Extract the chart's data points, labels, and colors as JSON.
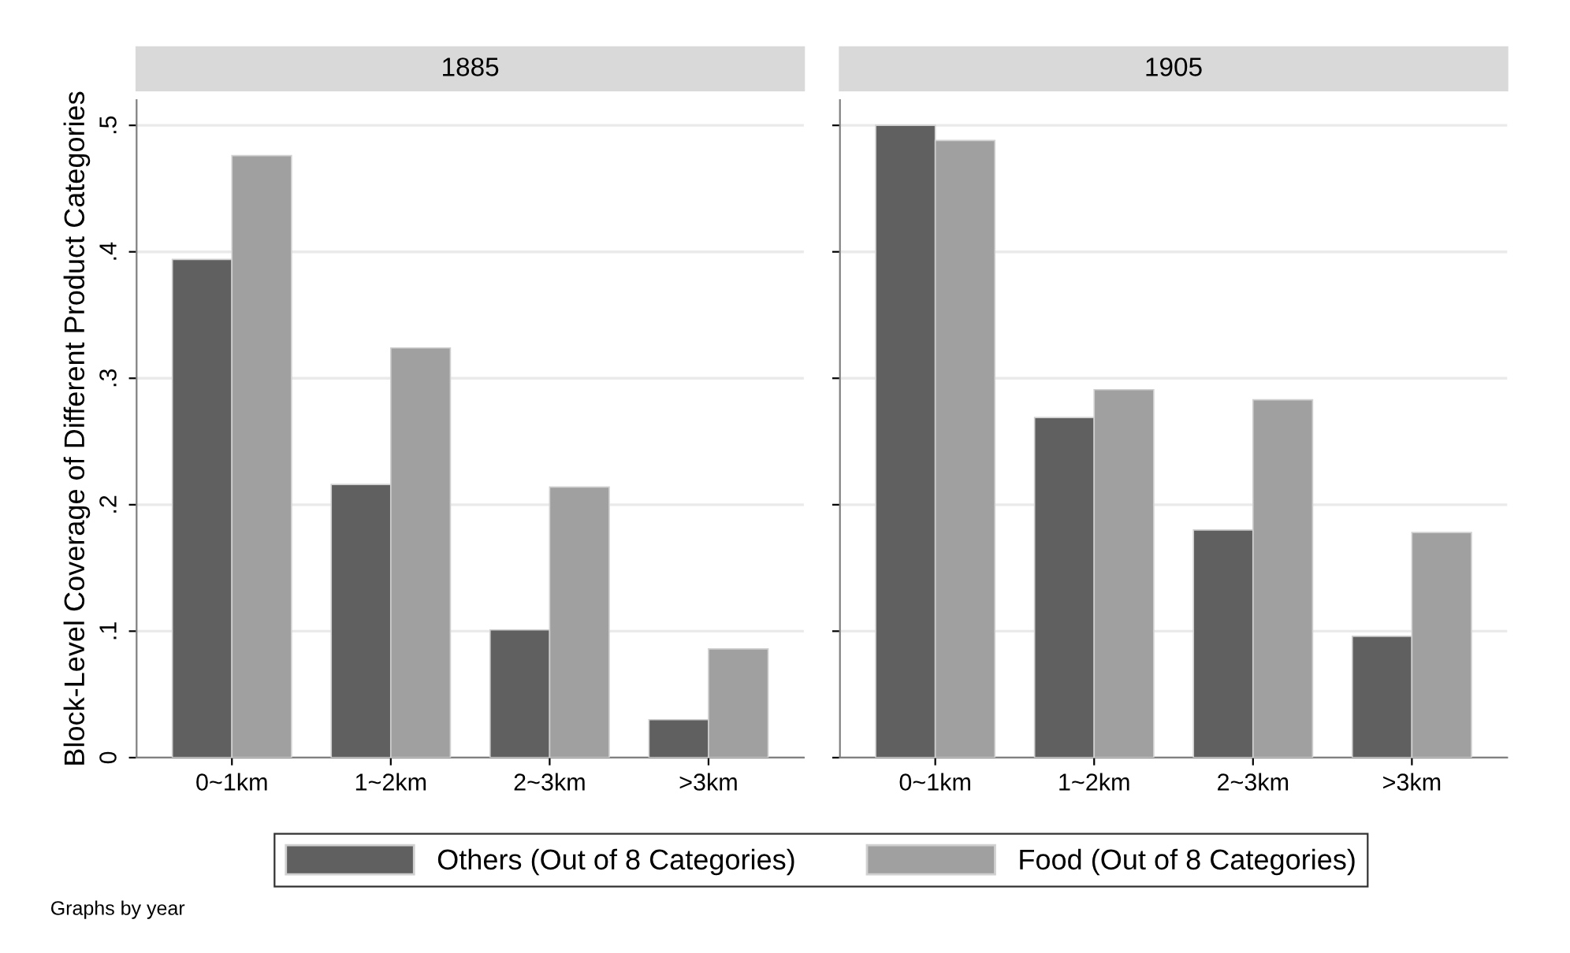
{
  "chart_data": [
    {
      "type": "bar",
      "title": "1885",
      "ylabel": "Block-Level Coverage of Different Product Categories",
      "categories": [
        "0~1km",
        "1~2km",
        "2~3km",
        ">3km"
      ],
      "series": [
        {
          "name": "Others (Out of 8 Categories)",
          "color": "#606060",
          "values": [
            0.394,
            0.216,
            0.101,
            0.03
          ]
        },
        {
          "name": "Food (Out of 8 Categories)",
          "color": "#a0a0a0",
          "values": [
            0.476,
            0.324,
            0.214,
            0.086
          ]
        }
      ],
      "ylim": [
        0,
        0.52
      ],
      "yticks": [
        0,
        {
          "value": 0.1,
          "label": ".1"
        },
        {
          "value": 0.2,
          "label": ".2"
        },
        {
          "value": 0.3,
          "label": ".3"
        },
        {
          "value": 0.4,
          "label": ".4"
        },
        {
          "value": 0.5,
          "label": ".5"
        }
      ],
      "grid": "y",
      "legend": "bottom",
      "annotations": [
        "Graphs by year"
      ]
    },
    {
      "type": "bar",
      "title": "1905",
      "categories": [
        "0~1km",
        "1~2km",
        "2~3km",
        ">3km"
      ],
      "series": [
        {
          "color": "#606060",
          "values": [
            0.5,
            0.269,
            0.18,
            0.096
          ]
        },
        {
          "color": "#a0a0a0",
          "values": [
            0.488,
            0.291,
            0.283,
            0.178
          ]
        }
      ],
      "ylim": [
        0,
        0.52
      ],
      "yticks": [
        {
          "value": 0,
          "label": null
        },
        {
          "value": 0.1,
          "label": null
        },
        {
          "value": 0.2,
          "label": null
        },
        {
          "value": 0.3,
          "label": null
        },
        {
          "value": 0.4,
          "label": null
        },
        {
          "value": 0.5,
          "label": null
        }
      ],
      "tick_labels": "x",
      "grid": "y",
      "legend": false
    }
  ]
}
